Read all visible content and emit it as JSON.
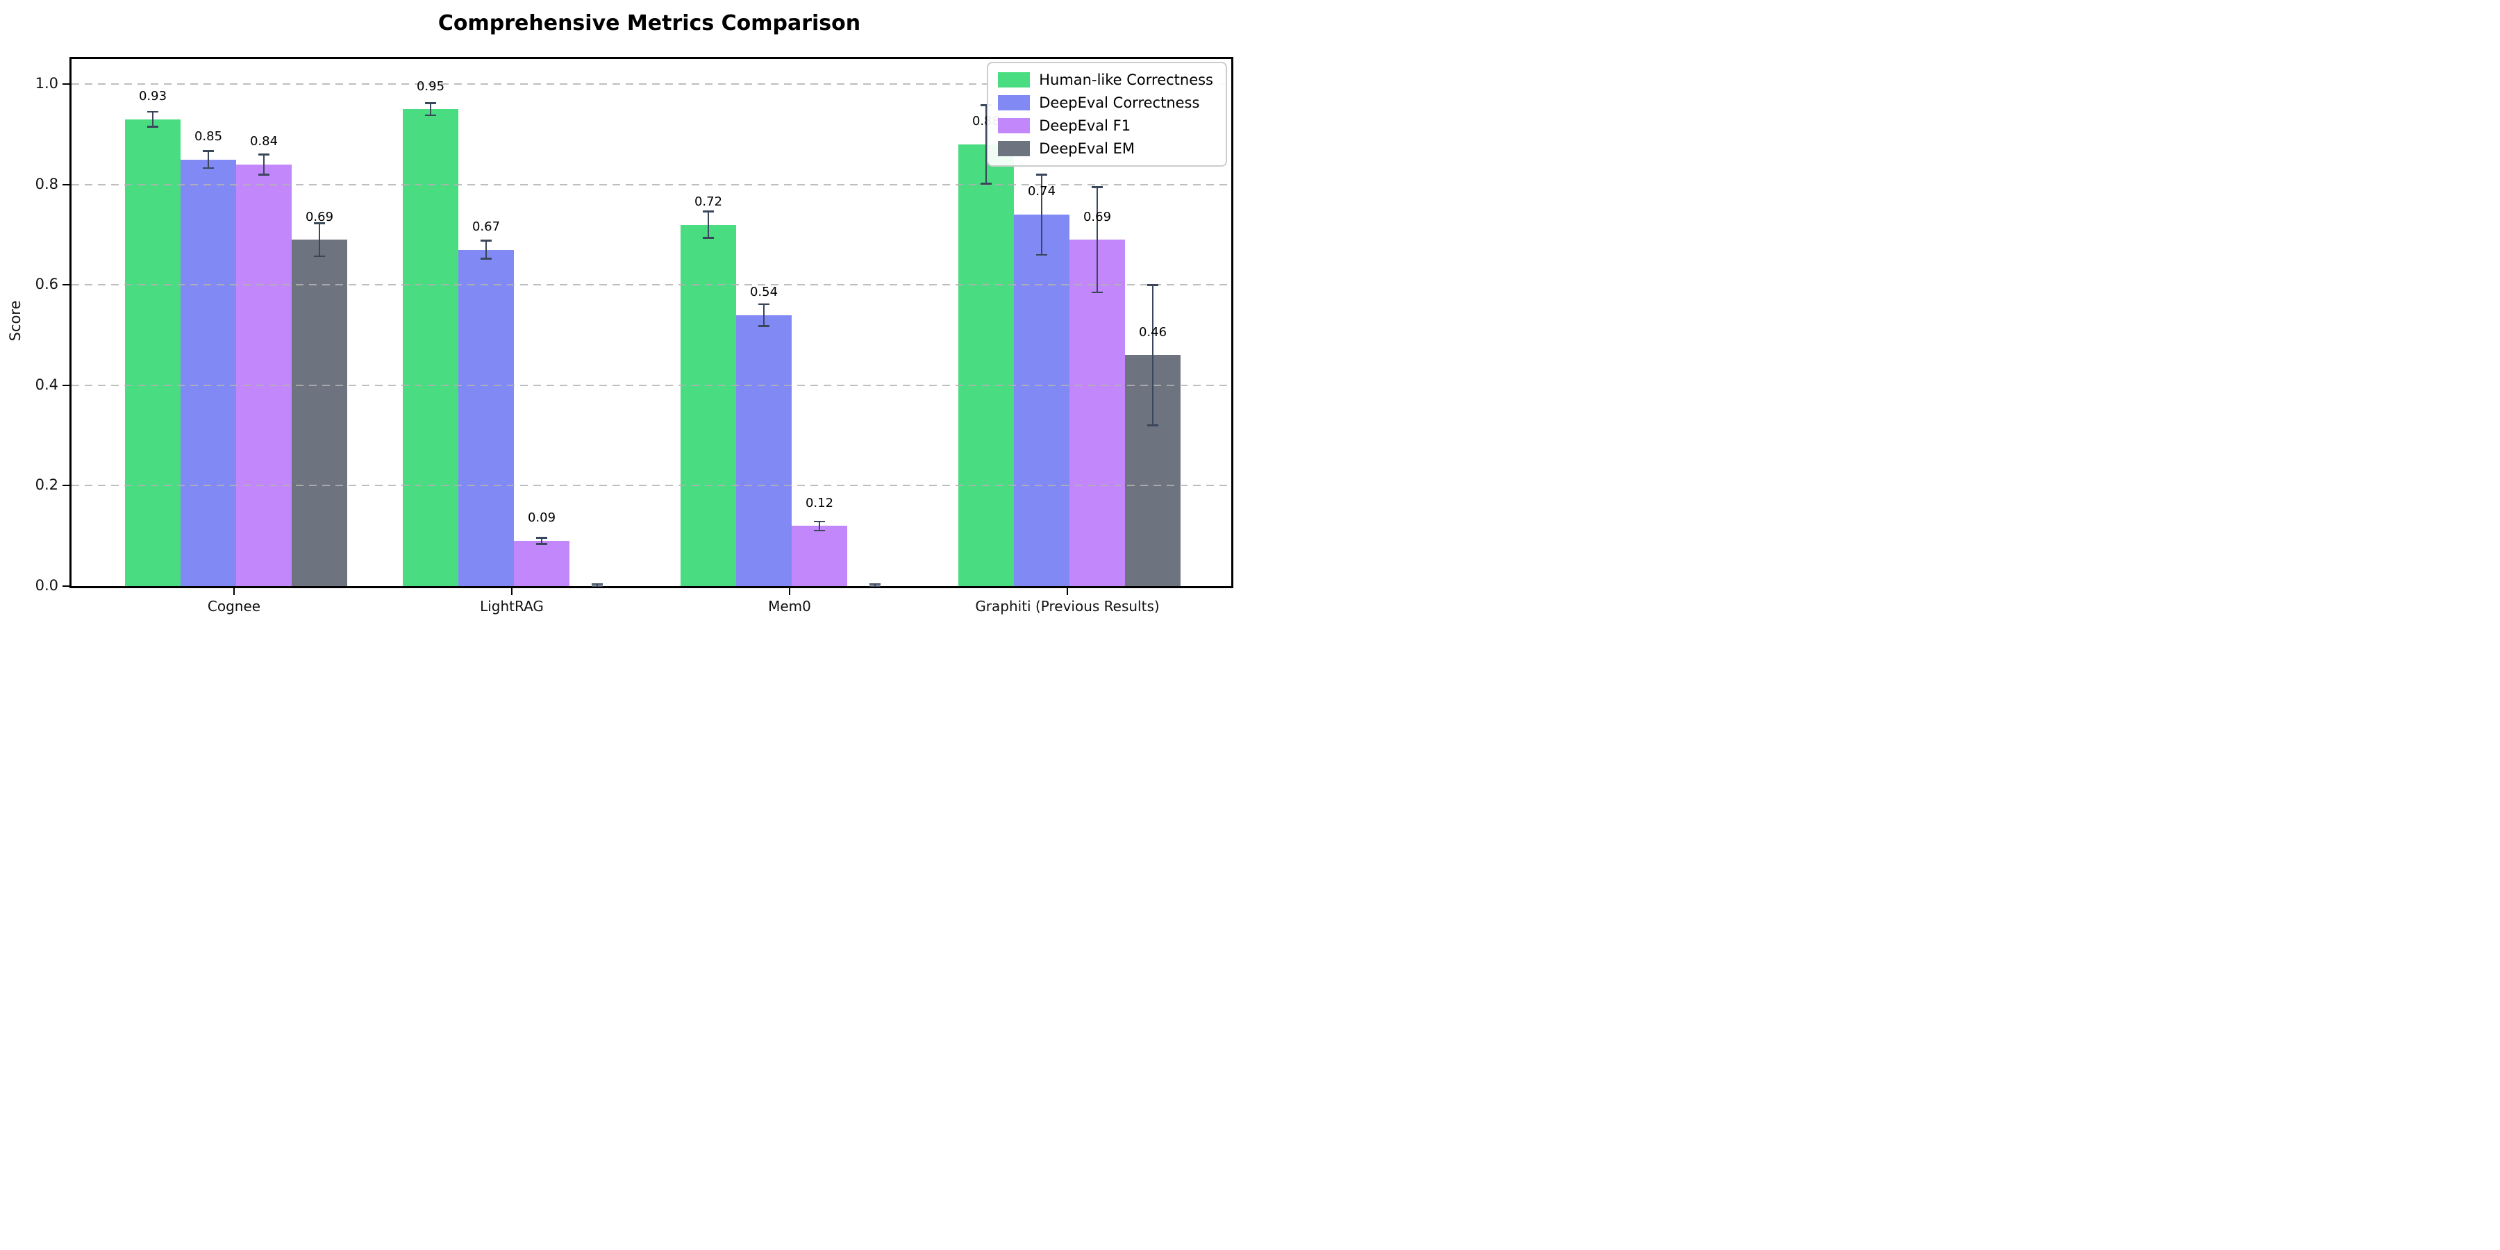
{
  "chart_data": {
    "type": "bar",
    "title": "Comprehensive Metrics Comparison",
    "ylabel": "Score",
    "xlabel": "",
    "categories": [
      "Cognee",
      "LightRAG",
      "Mem0",
      "Graphiti (Previous Results)"
    ],
    "series": [
      {
        "name": "Human-like Correctness",
        "color": "#49dc81",
        "values": [
          0.93,
          0.95,
          0.72,
          0.88
        ],
        "errors": [
          0.015,
          0.012,
          0.026,
          0.078
        ],
        "labels": [
          "0.93",
          "0.95",
          "0.72",
          "0.88"
        ]
      },
      {
        "name": "DeepEval Correctness",
        "color": "#8189f5",
        "values": [
          0.85,
          0.67,
          0.54,
          0.74
        ],
        "errors": [
          0.017,
          0.018,
          0.022,
          0.08
        ],
        "labels": [
          "0.85",
          "0.67",
          "0.54",
          "0.74"
        ]
      },
      {
        "name": "DeepEval F1",
        "color": "#c287fa",
        "values": [
          0.84,
          0.09,
          0.12,
          0.69
        ],
        "errors": [
          0.02,
          0.006,
          0.009,
          0.105
        ],
        "labels": [
          "0.84",
          "0.09",
          "0.12",
          "0.69"
        ]
      },
      {
        "name": "DeepEval EM",
        "color": "#6d7480",
        "values": [
          0.69,
          0.0,
          0.0,
          0.46
        ],
        "errors": [
          0.033,
          0.004,
          0.004,
          0.14
        ],
        "labels": [
          "0.69",
          "",
          "",
          "0.46"
        ]
      }
    ],
    "ylim": [
      0,
      1.05
    ],
    "yticks": [
      "0.0",
      "0.2",
      "0.4",
      "0.6",
      "0.8",
      "1.0"
    ],
    "grid": "dashed-horizontal",
    "legend_position": "upper-right",
    "error_bar_color": "#3a4659"
  }
}
